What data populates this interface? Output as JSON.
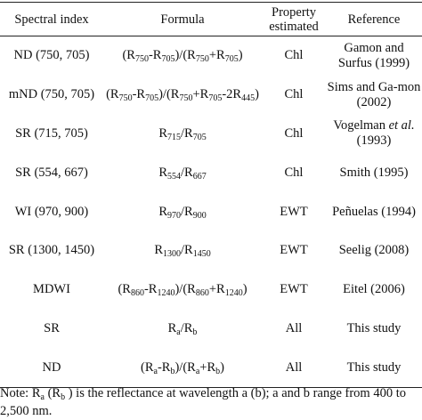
{
  "table": {
    "header": [
      "Spectral index",
      "Formula",
      "Property estimated",
      "Reference"
    ],
    "rows": [
      [
        [
          "ND (750, 705)"
        ],
        [
          "(R",
          "750",
          "-R",
          "705",
          ")/(R",
          "750",
          "+R",
          "705",
          ")"
        ],
        [
          "Chl"
        ],
        [
          "Gamon and Surfus (1999)"
        ]
      ],
      [
        [
          "mND (750, 705)"
        ],
        [
          "(R",
          "750",
          "-R",
          "705",
          ")/(R",
          "750",
          "+R",
          "705",
          "-2R",
          "445",
          ")"
        ],
        [
          "Chl"
        ],
        [
          "Sims and Ga-mon (2002)"
        ]
      ],
      [
        [
          "SR (715, 705)"
        ],
        [
          "R",
          "715",
          "/R",
          "705"
        ],
        [
          "Chl"
        ],
        [
          "Vogelman ",
          "et al.",
          " (1993)"
        ]
      ],
      [
        [
          "SR (554, 667)"
        ],
        [
          "R",
          "554",
          "/R",
          "667"
        ],
        [
          "Chl"
        ],
        [
          "Smith (1995)"
        ]
      ],
      [
        [
          "WI (970, 900)"
        ],
        [
          "R",
          "970",
          "/R",
          "900"
        ],
        [
          "EWT"
        ],
        [
          "Peñuelas (1994)"
        ]
      ],
      [
        [
          "SR (1300, 1450)"
        ],
        [
          "R",
          "1300",
          "/R",
          "1450"
        ],
        [
          "EWT"
        ],
        [
          "Seelig (2008)"
        ]
      ],
      [
        [
          "MDWI"
        ],
        [
          "(R",
          "860",
          "-R",
          "1240",
          ")/(R",
          "860",
          "+R",
          "1240",
          ")"
        ],
        [
          "EWT"
        ],
        [
          "Eitel (2006)"
        ]
      ],
      [
        [
          "SR"
        ],
        [
          "R",
          "a",
          "/R",
          "b"
        ],
        [
          "All"
        ],
        [
          "This study"
        ]
      ],
      [
        [
          "ND"
        ],
        [
          "(R",
          "a",
          "-R",
          "b",
          ")/(R",
          "a",
          "+R",
          "b",
          ")"
        ],
        [
          "All"
        ],
        [
          "This study"
        ]
      ]
    ],
    "note": [
      "Note: R",
      "a",
      " (R",
      "b",
      " ) is the reflectance at wavelength a (b); a and b range from 400 to 2,500 nm."
    ]
  }
}
